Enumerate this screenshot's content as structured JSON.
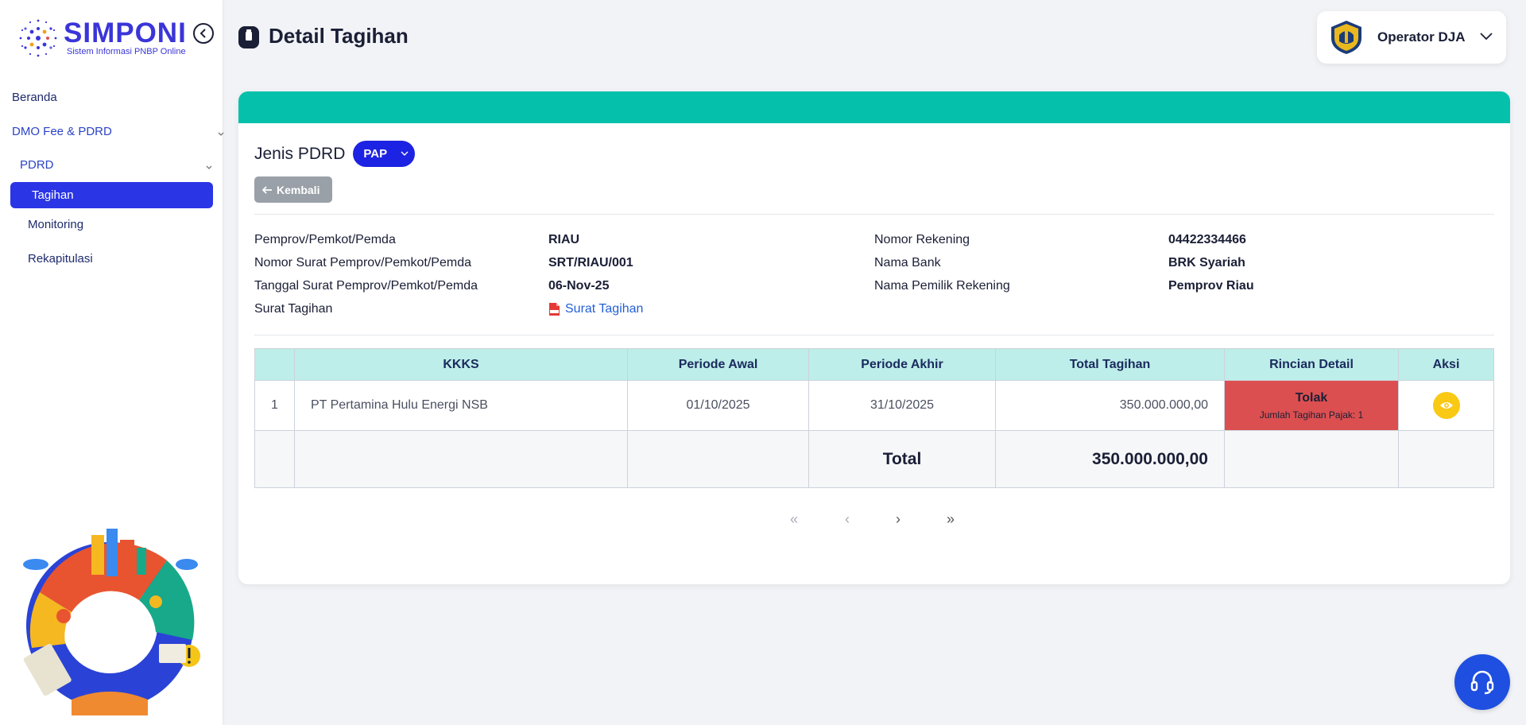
{
  "brand": {
    "name": "SIMPONI",
    "tagline": "Sistem Informasi PNBP Online"
  },
  "sidebar": {
    "items": [
      {
        "label": "Beranda"
      },
      {
        "label": "DMO Fee & PDRD"
      },
      {
        "label": "PDRD"
      },
      {
        "label": "Tagihan"
      },
      {
        "label": "Monitoring"
      },
      {
        "label": "Rekapitulasi"
      }
    ]
  },
  "header": {
    "title": "Detail Tagihan",
    "user_name": "Operator DJA"
  },
  "filter": {
    "label": "Jenis PDRD",
    "selected": "PAP"
  },
  "back_label": "Kembali",
  "info_left": [
    {
      "label": "Pemprov/Pemkot/Pemda",
      "value": "RIAU"
    },
    {
      "label": "Nomor Surat Pemprov/Pemkot/Pemda",
      "value": "SRT/RIAU/001"
    },
    {
      "label": "Tanggal Surat Pemprov/Pemkot/Pemda",
      "value": "06-Nov-25"
    },
    {
      "label": "Surat Tagihan",
      "value": "Surat Tagihan"
    }
  ],
  "info_right": [
    {
      "label": "Nomor Rekening",
      "value": "04422334466"
    },
    {
      "label": "Nama Bank",
      "value": "BRK Syariah"
    },
    {
      "label": "Nama Pemilik Rekening",
      "value": "Pemprov Riau"
    }
  ],
  "table": {
    "headers": [
      "KKKS",
      "Periode Awal",
      "Periode Akhir",
      "Total Tagihan",
      "Rincian Detail",
      "Aksi"
    ],
    "rows": [
      {
        "no": "1",
        "kkks": "PT Pertamina Hulu Energi NSB",
        "periode_awal": "01/10/2025",
        "periode_akhir": "31/10/2025",
        "total": "350.000.000,00",
        "status": "Tolak",
        "status_note": "Jumlah Tagihan Pajak: 1"
      }
    ],
    "total_label": "Total",
    "total_value": "350.000.000,00"
  },
  "pagination": {
    "first": "«",
    "prev": "‹",
    "next": "›",
    "last": "»"
  },
  "colors": {
    "accent": "#2a35e5",
    "band": "#05c1ac",
    "table_header": "#bdeee9",
    "status_reject": "#dc4f50",
    "action": "#f9c914"
  },
  "icons": [
    "collapse-icon",
    "chevron-down-icon",
    "document-icon",
    "garuda-emblem-icon",
    "arrow-left-icon",
    "pdf-icon",
    "eye-icon",
    "headset-icon"
  ]
}
